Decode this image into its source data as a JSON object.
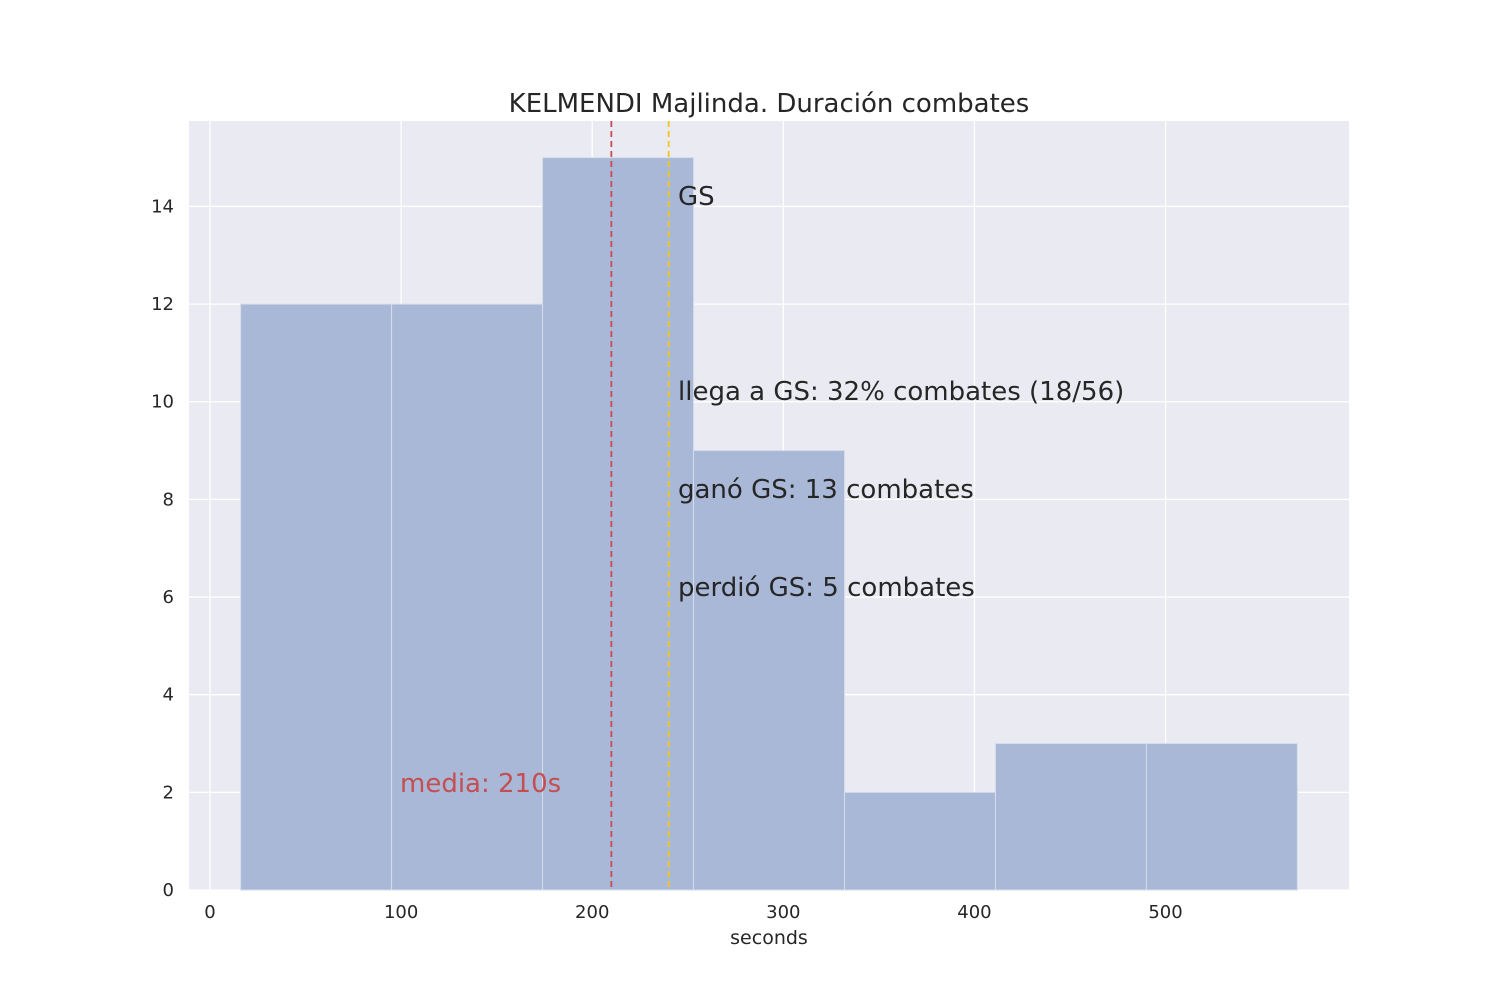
{
  "chart_data": {
    "type": "bar",
    "title": "KELMENDI Majlinda. Duración combates",
    "xlabel": "seconds",
    "ylabel": "",
    "xlim": [
      -11,
      596
    ],
    "ylim": [
      0,
      15.75
    ],
    "grid": true,
    "x_ticks": [
      "0",
      "100",
      "200",
      "300",
      "400",
      "500"
    ],
    "y_ticks": [
      "0",
      "2",
      "4",
      "6",
      "8",
      "10",
      "12",
      "14"
    ],
    "bins": [
      {
        "x0": 16,
        "x1": 95,
        "count": 12
      },
      {
        "x0": 95,
        "x1": 174,
        "count": 12
      },
      {
        "x0": 174,
        "x1": 253,
        "count": 15
      },
      {
        "x0": 253,
        "x1": 332,
        "count": 9
      },
      {
        "x0": 332,
        "x1": 411,
        "count": 2
      },
      {
        "x0": 411,
        "x1": 490,
        "count": 3
      },
      {
        "x0": 490,
        "x1": 569,
        "count": 3
      }
    ],
    "mean_line": {
      "x": 210,
      "label": "media: 210s",
      "color": "#c44e52"
    },
    "gs_line": {
      "x": 240,
      "label": "GS",
      "color": "#f5c518"
    },
    "annotations": [
      "llega a GS: 32% combates (18/56)",
      "ganó GS: 13 combates",
      "perdió GS: 5 combates"
    ],
    "colors": {
      "bar": "#a9b8d6",
      "background": "#eaeaf2",
      "grid": "#ffffff"
    }
  }
}
